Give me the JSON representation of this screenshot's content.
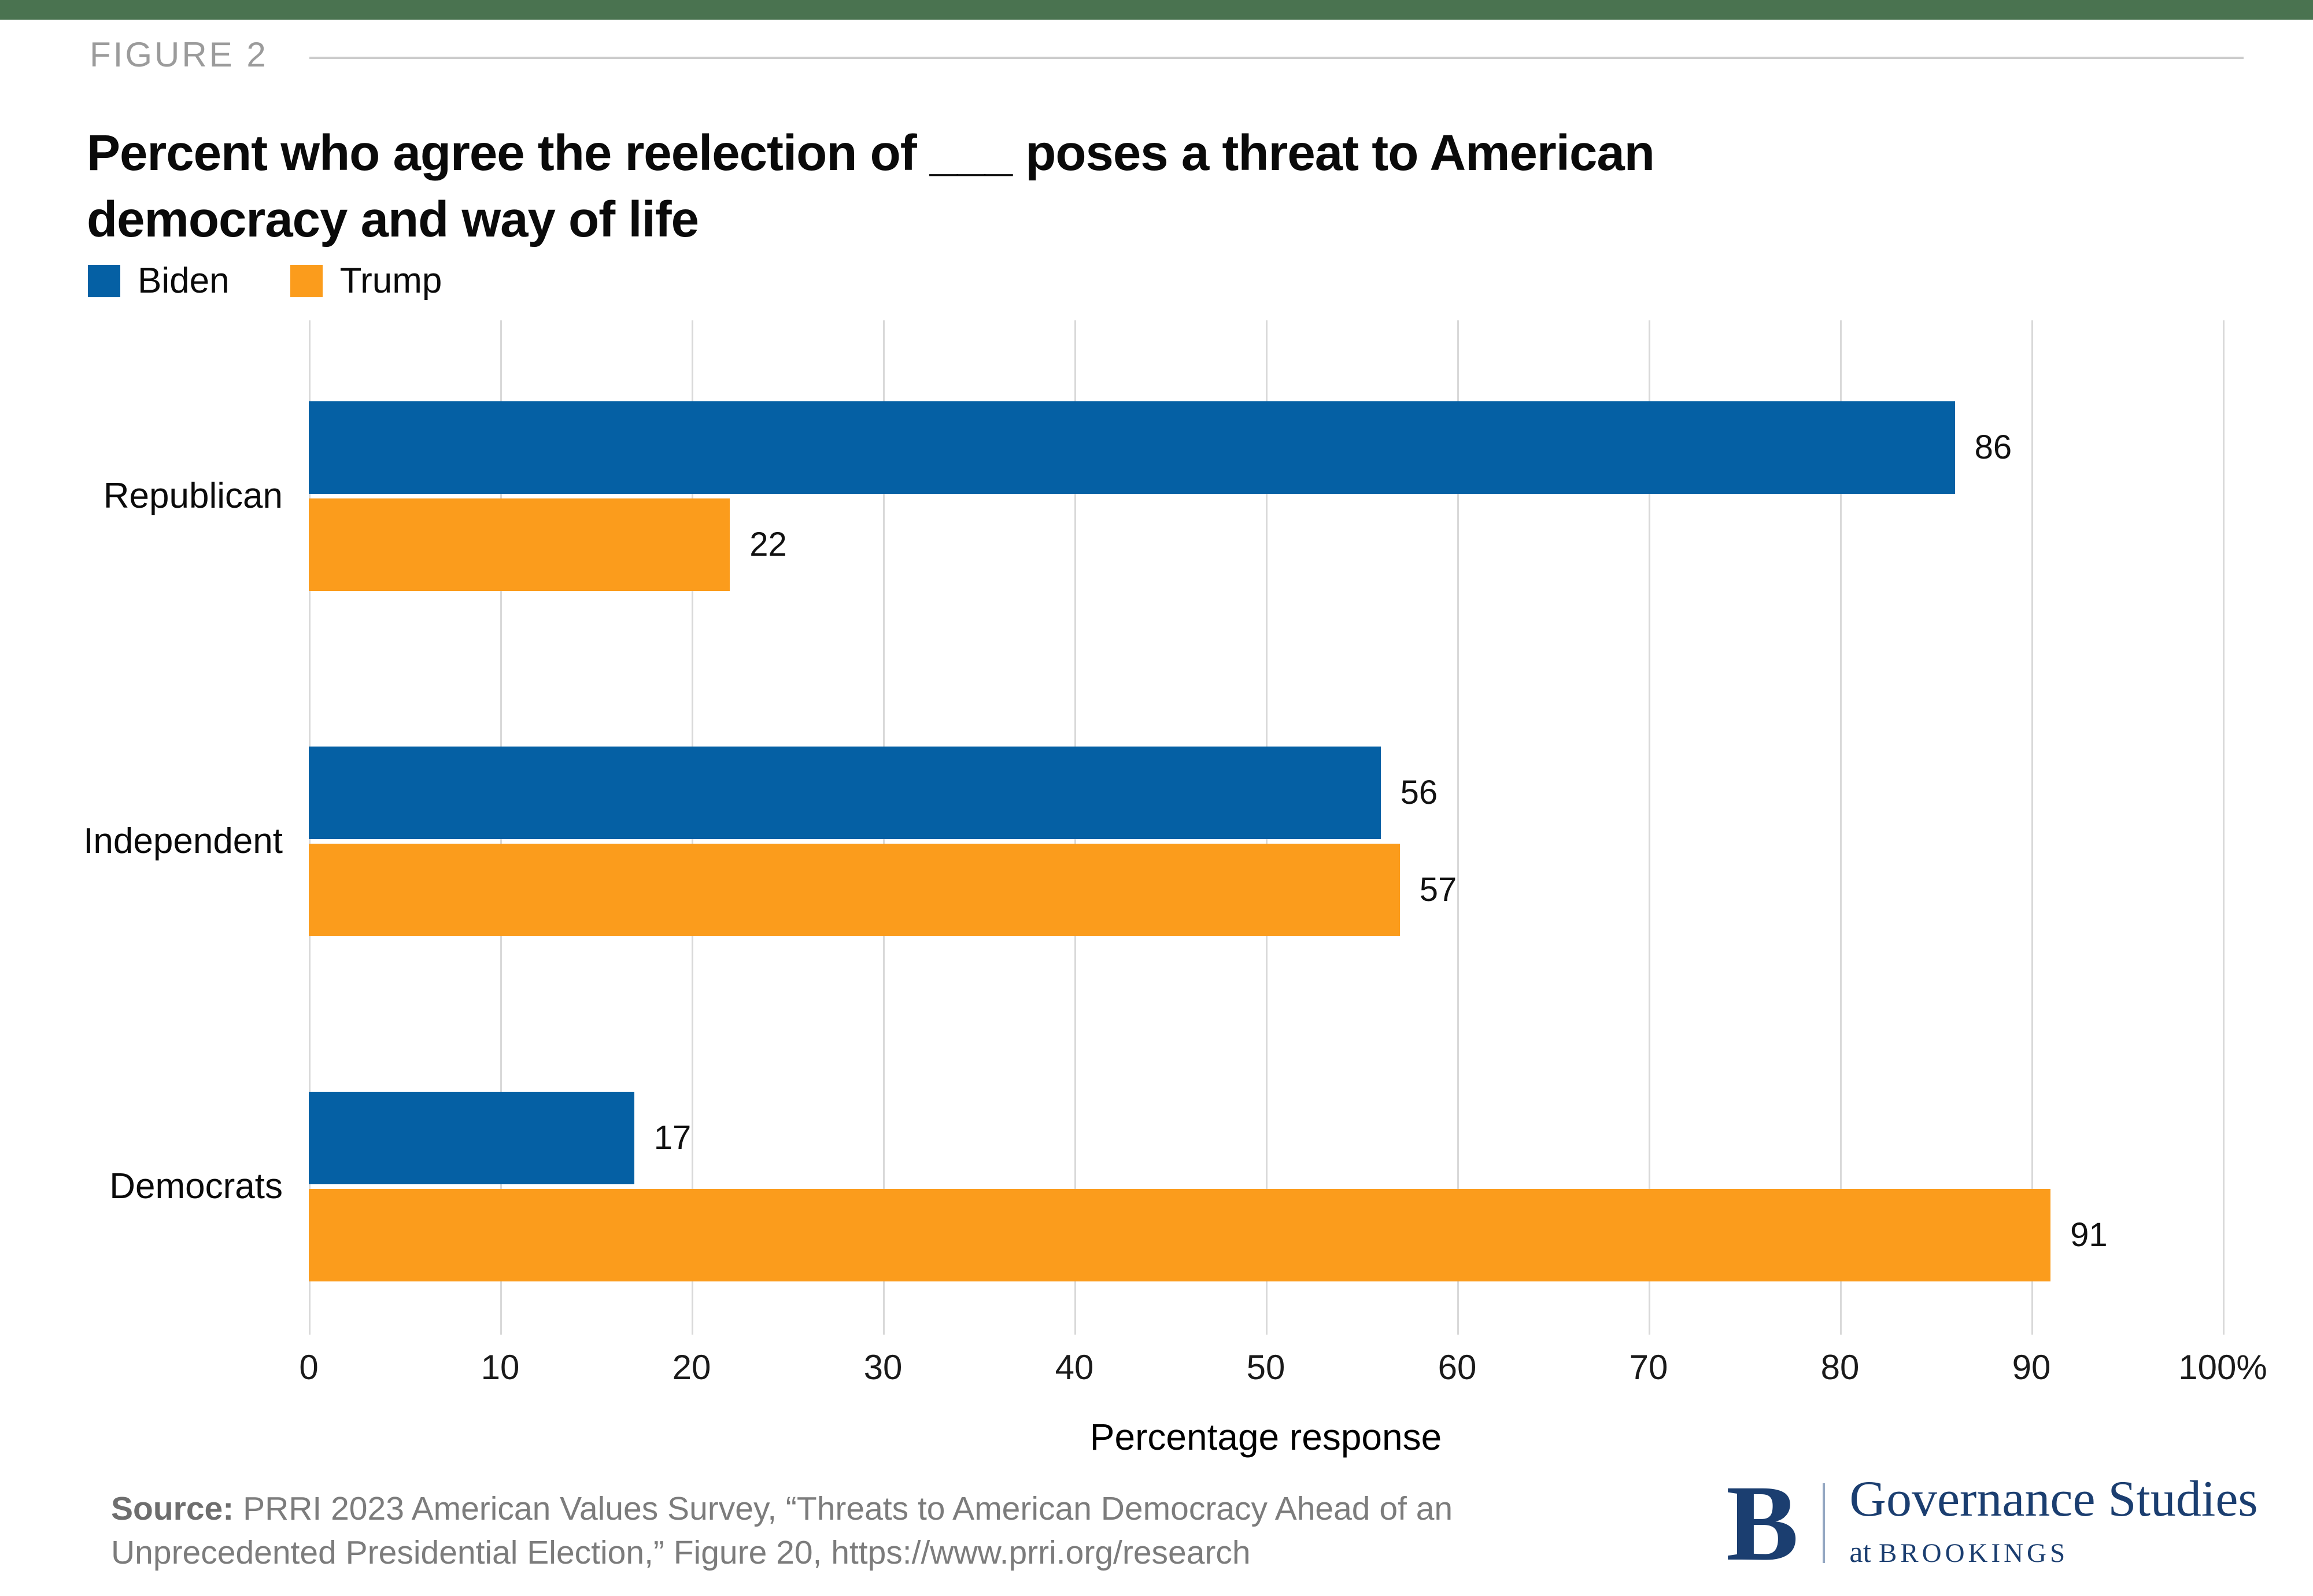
{
  "header": {
    "figure_label": "FIGURE 2",
    "title": "Percent who agree the reelection of ___ poses a threat to American\ndemocracy and way of life"
  },
  "chart_data": {
    "type": "bar",
    "orientation": "horizontal",
    "title": "Percent who agree the reelection of ___ poses a threat to American democracy and way of life",
    "categories": [
      "Republican",
      "Independent",
      "Democrats"
    ],
    "series": [
      {
        "name": "Biden",
        "color": "#0560A4",
        "values": [
          86,
          56,
          17
        ]
      },
      {
        "name": "Trump",
        "color": "#FB9C1C",
        "values": [
          22,
          57,
          91
        ]
      }
    ],
    "xlabel": "Percentage response",
    "xlim": [
      0,
      100
    ],
    "xticks": [
      0,
      10,
      20,
      30,
      40,
      50,
      60,
      70,
      80,
      90,
      100
    ],
    "xtick_last_suffix": "%",
    "grid": true,
    "gridline_color": "#D9D9D9",
    "value_labels": true,
    "legend_position": "top-left"
  },
  "source": {
    "prefix": "Source:",
    "text": " PRRI 2023 American Values Survey, “Threats to American Democracy Ahead of an Unprecedented Presidential Election,” Figure 20, https://www.prri.org/research"
  },
  "logo": {
    "monogram": "B",
    "org": "Governance Studies",
    "sub_prefix": "at ",
    "sub_org": "BROOKINGS"
  },
  "colors": {
    "top_bar": "#4A7350",
    "biden": "#0560A4",
    "trump": "#FB9C1C",
    "navy": "#1B3E70"
  }
}
